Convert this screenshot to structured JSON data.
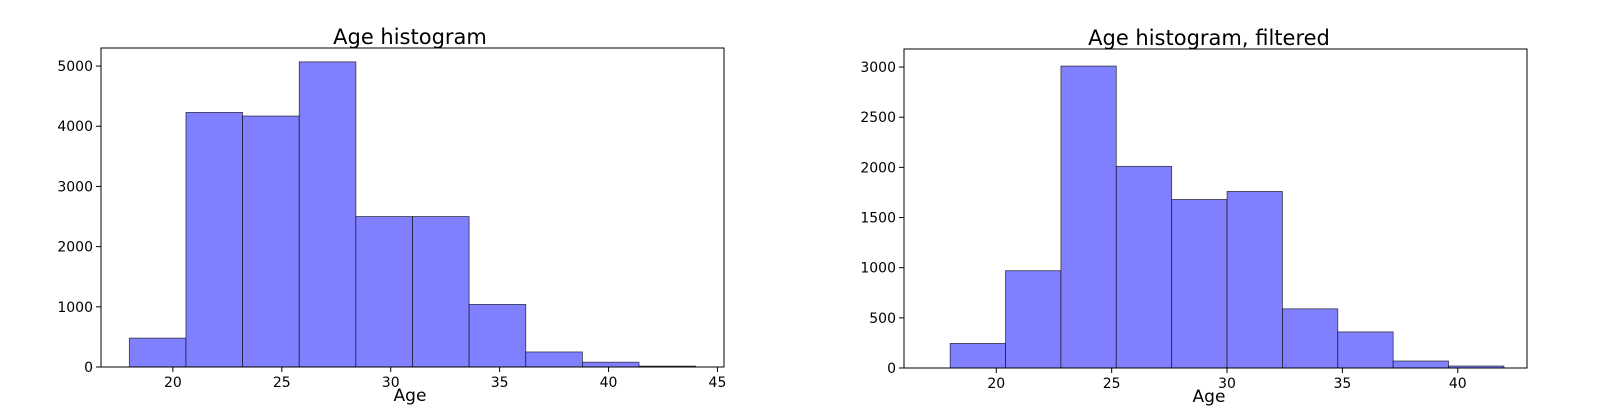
{
  "chart_data": [
    {
      "type": "bar",
      "title": "Age histogram",
      "xlabel": "Age",
      "ylabel": "",
      "xlim": [
        16.7,
        45.3
      ],
      "ylim": [
        0,
        5300
      ],
      "xticks": [
        20,
        25,
        30,
        35,
        40,
        45
      ],
      "yticks": [
        0,
        1000,
        2000,
        3000,
        4000,
        5000
      ],
      "bin_edges": [
        18,
        20.6,
        23.2,
        25.8,
        28.4,
        31.0,
        33.6,
        36.2,
        38.8,
        41.4,
        44.0
      ],
      "values": [
        480,
        4230,
        4170,
        5070,
        2500,
        2500,
        1040,
        250,
        80,
        15
      ],
      "grid": false,
      "bar_color": "#8080ff"
    },
    {
      "type": "bar",
      "title": "Age histogram, filtered",
      "xlabel": "Age",
      "ylabel": "",
      "xlim": [
        16.0,
        43.0
      ],
      "ylim": [
        0,
        3180
      ],
      "xticks": [
        20,
        25,
        30,
        35,
        40
      ],
      "yticks": [
        0,
        500,
        1000,
        1500,
        2000,
        2500,
        3000
      ],
      "bin_edges": [
        18,
        20.4,
        22.8,
        25.2,
        27.6,
        30.0,
        32.4,
        34.8,
        37.2,
        39.6,
        42.0
      ],
      "values": [
        245,
        970,
        3010,
        2010,
        1680,
        1760,
        590,
        360,
        70,
        20
      ],
      "grid": false,
      "bar_color": "#8080ff"
    }
  ]
}
